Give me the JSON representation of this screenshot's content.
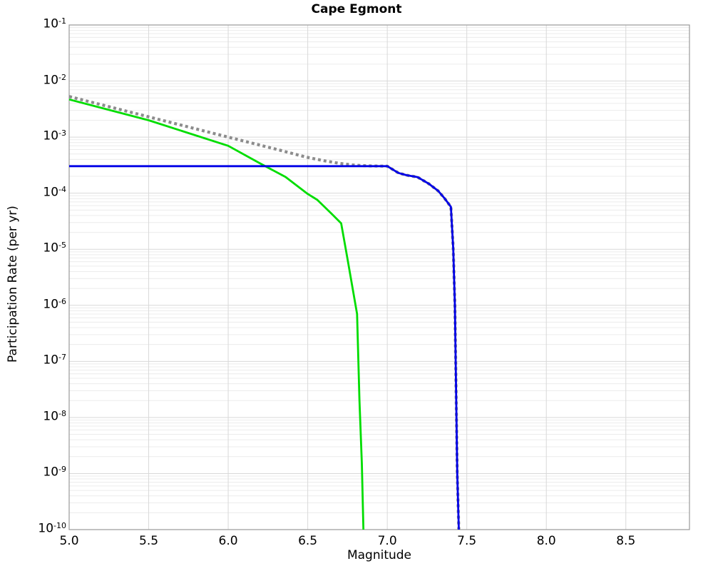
{
  "chart_data": {
    "type": "line",
    "title": "Cape Egmont",
    "xlabel": "Magnitude",
    "ylabel": "Participation Rate (per yr)",
    "xlim": [
      5.0,
      8.9
    ],
    "ylim_log10": [
      -1,
      -10
    ],
    "grid": true,
    "legend": "none",
    "x_ticks": [
      {
        "label": "5.0",
        "value": 5.0
      },
      {
        "label": "5.5",
        "value": 5.5
      },
      {
        "label": "6.0",
        "value": 6.0
      },
      {
        "label": "6.5",
        "value": 6.5
      },
      {
        "label": "7.0",
        "value": 7.0
      },
      {
        "label": "7.5",
        "value": 7.5
      },
      {
        "label": "8.0",
        "value": 8.0
      },
      {
        "label": "8.5",
        "value": 8.5
      }
    ],
    "y_ticks": [
      {
        "base": "10",
        "exp": "-1"
      },
      {
        "base": "10",
        "exp": "-2"
      },
      {
        "base": "10",
        "exp": "-3"
      },
      {
        "base": "10",
        "exp": "-4"
      },
      {
        "base": "10",
        "exp": "-5"
      },
      {
        "base": "10",
        "exp": "-6"
      },
      {
        "base": "10",
        "exp": "-7"
      },
      {
        "base": "10",
        "exp": "-8"
      },
      {
        "base": "10",
        "exp": "-9"
      },
      {
        "base": "10",
        "exp": "-10"
      }
    ],
    "colors": {
      "grid_major": "#d9d9d9",
      "grid_minor": "#ececec",
      "border": "#999999",
      "title": "#000000"
    },
    "series": [
      {
        "id": "green-solid",
        "color": "#00dd00",
        "style": "solid",
        "width": 2.8,
        "points": [
          [
            5.0,
            0.0047
          ],
          [
            5.5,
            0.002
          ],
          [
            6.0,
            0.0007
          ],
          [
            6.2,
            0.00034
          ],
          [
            6.36,
            0.000195
          ],
          [
            6.5,
            9.7e-05
          ],
          [
            6.56,
            7.6e-05
          ],
          [
            6.65,
            4.3e-05
          ],
          [
            6.71,
            2.9e-05
          ],
          [
            6.75,
            6.7e-06
          ],
          [
            6.81,
            7e-07
          ],
          [
            6.815,
            2.2e-07
          ],
          [
            6.825,
            2.1e-08
          ],
          [
            6.84,
            1.5e-09
          ],
          [
            6.85,
            1e-10
          ]
        ]
      },
      {
        "id": "gray-dotted",
        "color": "#8c8c8c",
        "style": "dotted",
        "width": 4.2,
        "points": [
          [
            5.0,
            0.0053
          ],
          [
            5.5,
            0.0023
          ],
          [
            6.0,
            0.001
          ],
          [
            6.3,
            0.00061
          ],
          [
            6.49,
            0.00044
          ],
          [
            6.6,
            0.00038
          ],
          [
            6.7,
            0.00034
          ],
          [
            6.8,
            0.000315
          ],
          [
            6.9,
            0.000306
          ],
          [
            7.0,
            0.000303
          ],
          [
            7.07,
            0.00023
          ],
          [
            7.12,
            0.00021
          ],
          [
            7.19,
            0.000194
          ],
          [
            7.26,
            0.000148
          ],
          [
            7.32,
            0.00011
          ],
          [
            7.36,
            8.1e-05
          ],
          [
            7.4,
            5.7e-05
          ],
          [
            7.415,
            1e-05
          ],
          [
            7.425,
            1e-06
          ],
          [
            7.43,
            1e-07
          ],
          [
            7.435,
            1e-08
          ],
          [
            7.44,
            1e-09
          ],
          [
            7.45,
            1e-10
          ]
        ]
      },
      {
        "id": "blue-solid",
        "color": "#0000e6",
        "style": "solid",
        "width": 2.8,
        "points": [
          [
            5.0,
            0.000303
          ],
          [
            7.0,
            0.000303
          ],
          [
            7.07,
            0.00023
          ],
          [
            7.12,
            0.00021
          ],
          [
            7.19,
            0.000194
          ],
          [
            7.26,
            0.000148
          ],
          [
            7.32,
            0.00011
          ],
          [
            7.36,
            8.1e-05
          ],
          [
            7.4,
            5.7e-05
          ],
          [
            7.415,
            1e-05
          ],
          [
            7.425,
            1e-06
          ],
          [
            7.43,
            1e-07
          ],
          [
            7.435,
            1e-08
          ],
          [
            7.44,
            1e-09
          ],
          [
            7.45,
            1e-10
          ]
        ]
      }
    ]
  }
}
